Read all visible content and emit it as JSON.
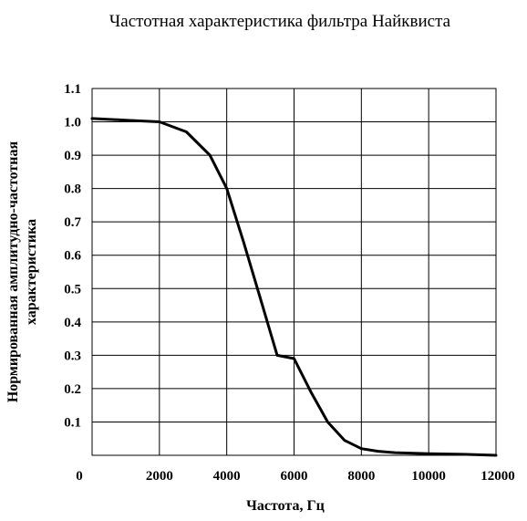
{
  "chart_data": {
    "type": "line",
    "title": "Частотная характеристика фильтра Найквиста",
    "xlabel": "Частота, Гц",
    "ylabel_lines": [
      "Нормированная амплитудно-частотная",
      "характеристика"
    ],
    "xlim": [
      0,
      12000
    ],
    "ylim": [
      0,
      1.1
    ],
    "x_ticks": [
      0,
      2000,
      4000,
      6000,
      8000,
      10000,
      12000
    ],
    "x_tick_labels": [
      "0",
      "2000",
      "4000",
      "6000",
      "8000",
      "10000",
      "12000"
    ],
    "y_ticks": [
      0.1,
      0.2,
      0.3,
      0.4,
      0.5,
      0.6,
      0.7,
      0.8,
      0.9,
      1.0,
      1.1
    ],
    "y_tick_labels": [
      "0.1",
      "0.2",
      "0.3",
      "0.4",
      "0.5",
      "0.6",
      "0.7",
      "0.8",
      "0.9",
      "1.0",
      "1.1"
    ],
    "grid": true,
    "legend": "none",
    "colors": {
      "line": "#000000",
      "grid": "#000000",
      "background": "#ffffff"
    },
    "series": [
      {
        "x": [
          0,
          1000,
          2000,
          2800,
          3500,
          4000,
          4500,
          5000,
          5500,
          6000,
          6500,
          7000,
          7500,
          8000,
          8500,
          9000,
          10000,
          11000,
          12000
        ],
        "y": [
          1.01,
          1.005,
          1.0,
          0.97,
          0.9,
          0.8,
          0.64,
          0.47,
          0.3,
          0.29,
          0.19,
          0.1,
          0.045,
          0.02,
          0.012,
          0.008,
          0.005,
          0.003,
          0.0
        ]
      }
    ]
  }
}
